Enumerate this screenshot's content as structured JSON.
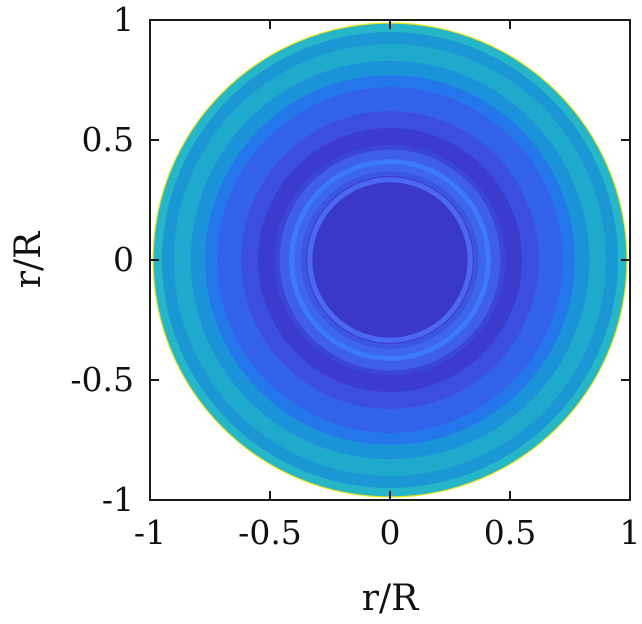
{
  "chart_data": {
    "type": "heatmap",
    "title": "",
    "xlabel": "r/R",
    "ylabel": "r/R",
    "xlim": [
      -1,
      1
    ],
    "ylim": [
      -1,
      1
    ],
    "xticks": [
      -1,
      -0.5,
      0,
      0.5,
      1
    ],
    "yticks": [
      -1,
      -0.5,
      0,
      0.5,
      1
    ],
    "xtick_labels": [
      "-1",
      "-0.5",
      "0",
      "0.5",
      "1"
    ],
    "ytick_labels": [
      "-1",
      "-0.5",
      "0",
      "0.5",
      "1"
    ],
    "grid": false,
    "colorbar": false,
    "domain": "disk",
    "domain_radius": 0.99,
    "rings": [
      {
        "r_outer": 0.99,
        "color": "#f2e51c"
      },
      {
        "r_outer": 0.985,
        "color": "#27b6c8"
      },
      {
        "r_outer": 0.95,
        "color": "#1a98d4"
      },
      {
        "r_outer": 0.9,
        "color": "#1fa9cc"
      },
      {
        "r_outer": 0.83,
        "color": "#1b93d8"
      },
      {
        "r_outer": 0.77,
        "color": "#2477ea"
      },
      {
        "r_outer": 0.72,
        "color": "#3261ea"
      },
      {
        "r_outer": 0.62,
        "color": "#3c4ee0"
      },
      {
        "r_outer": 0.55,
        "color": "#3b3ccd"
      },
      {
        "r_outer": 0.48,
        "color": "#3b46d6"
      },
      {
        "r_outer": 0.46,
        "color": "#3f5fe8"
      },
      {
        "r_outer": 0.42,
        "color": "#3b7cf6"
      },
      {
        "r_outer": 0.4,
        "color": "#3d66ed"
      },
      {
        "r_outer": 0.37,
        "color": "#3d56e0"
      },
      {
        "r_outer": 0.35,
        "color": "#3b3fcb"
      },
      {
        "r_outer": 0.345,
        "color": "#4a69f0"
      },
      {
        "r_outer": 0.33,
        "color": "#3a38c6"
      }
    ],
    "inner_circle": {
      "r": 0.33,
      "stroke": "#4a69f0"
    }
  }
}
